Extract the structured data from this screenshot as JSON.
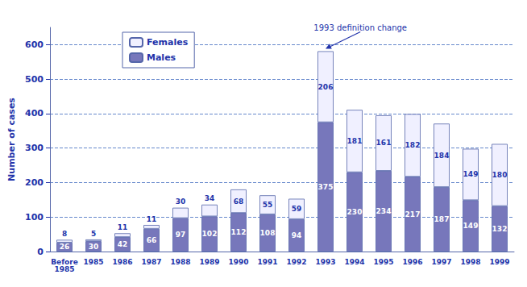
{
  "chart_data": {
    "type": "bar",
    "categories": [
      "Before\n1985",
      "1985",
      "1986",
      "1987",
      "1988",
      "1989",
      "1990",
      "1991",
      "1992",
      "1993",
      "1994",
      "1995",
      "1996",
      "1997",
      "1998",
      "1999"
    ],
    "series": [
      {
        "name": "Males",
        "color": "#7777bb",
        "values": [
          26,
          30,
          42,
          66,
          97,
          102,
          112,
          108,
          94,
          375,
          230,
          234,
          217,
          187,
          149,
          132
        ]
      },
      {
        "name": "Females",
        "color": "#f0f0ff",
        "values": [
          8,
          5,
          11,
          11,
          30,
          34,
          68,
          55,
          59,
          206,
          181,
          161,
          182,
          184,
          149,
          180
        ]
      }
    ],
    "stacked": true,
    "data_labels": true,
    "ylabel": "Number of cases",
    "ylim": [
      0,
      650
    ],
    "yticks": [
      0,
      100,
      200,
      300,
      400,
      500,
      600
    ],
    "grid": true,
    "legend": "upper left",
    "annotations": [
      {
        "text": "1993 definition change",
        "category": "1993"
      }
    ]
  }
}
